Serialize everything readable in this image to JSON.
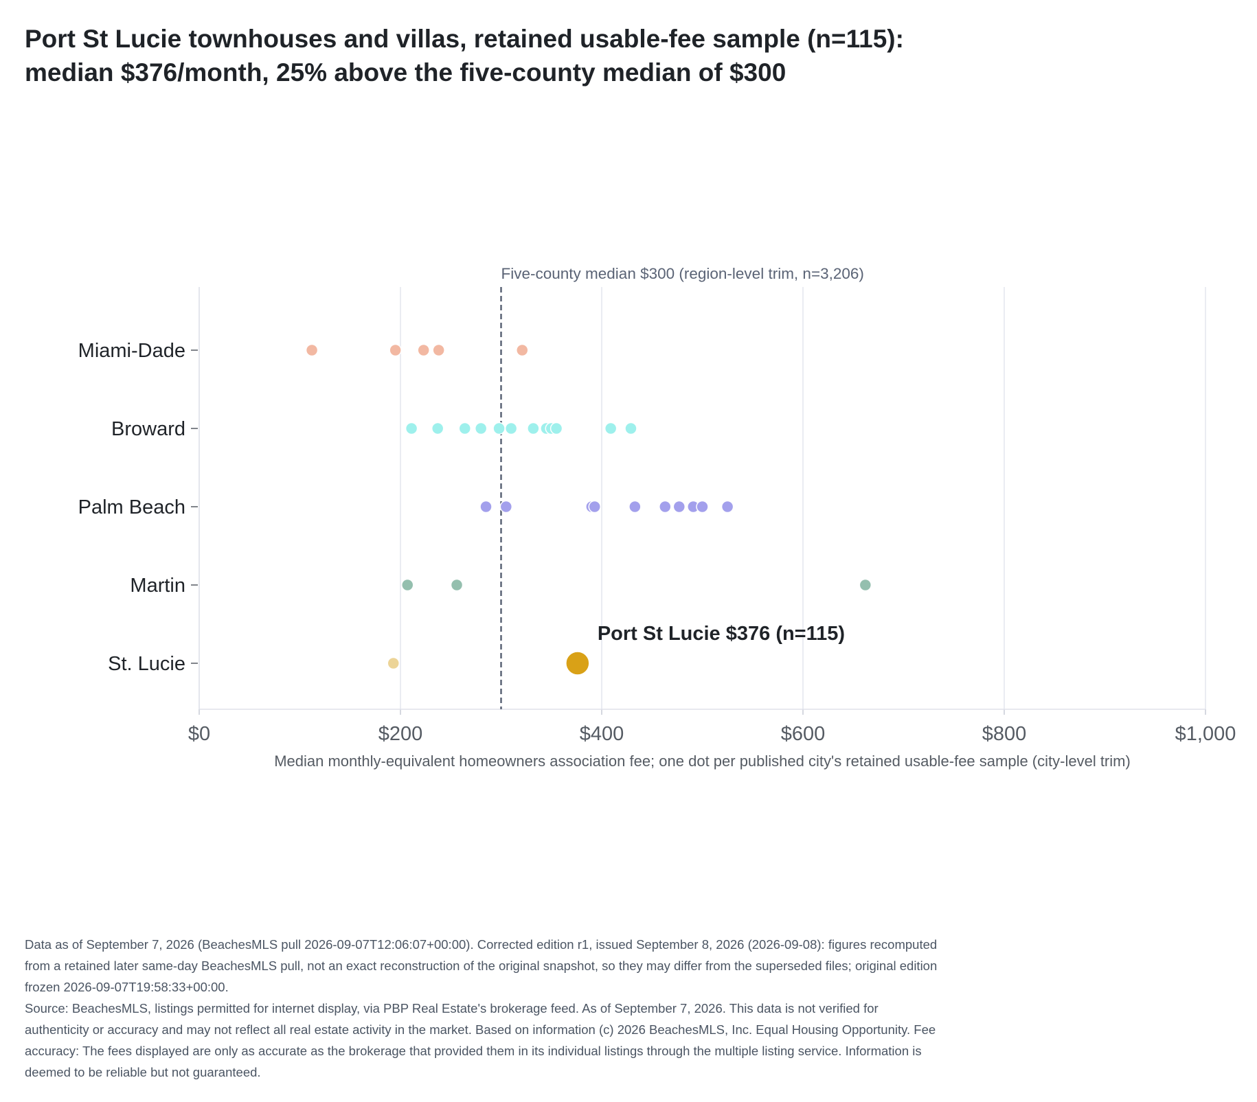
{
  "title": "Port St Lucie townhouses and villas, retained usable-fee sample (n=115): median $376/month, 25% above the five-county median of $300",
  "chart_data": {
    "type": "scatter",
    "xlabel": "Median monthly-equivalent homeowners association fee; one dot per published city's retained usable-fee sample (city-level trim)",
    "xlim": [
      0,
      1000
    ],
    "x_ticks": [
      0,
      200,
      400,
      600,
      800,
      1000
    ],
    "x_tick_labels": [
      "$0",
      "$200",
      "$400",
      "$600",
      "$800",
      "$1,000"
    ],
    "grid": "vertical",
    "categories": [
      "Miami-Dade",
      "Broward",
      "Palm Beach",
      "Martin",
      "St. Lucie"
    ],
    "series": [
      {
        "category": "Miami-Dade",
        "color": "#f2b8a2",
        "values": [
          112,
          195,
          223,
          238,
          321
        ]
      },
      {
        "category": "Broward",
        "color": "#9ef0ec",
        "values": [
          211,
          237,
          264,
          280,
          298,
          310,
          332,
          345,
          350,
          355,
          409,
          429
        ]
      },
      {
        "category": "Palm Beach",
        "color": "#a3a0ec",
        "values": [
          285,
          305,
          390,
          393,
          433,
          463,
          477,
          491,
          500,
          525
        ]
      },
      {
        "category": "Martin",
        "color": "#94bfae",
        "values": [
          207,
          256,
          662
        ]
      },
      {
        "category": "St. Lucie",
        "color": "#ecd497",
        "values": [
          193
        ]
      }
    ],
    "highlight": {
      "category": "St. Lucie",
      "value": 376,
      "color": "#d9a117",
      "label": "Port St Lucie $376 (n=115)"
    },
    "reference_line": {
      "value": 300,
      "label": "Five-county median $300 (region-level trim, n=3,206)",
      "color": "#5a6375"
    }
  },
  "footer": {
    "edition_note": "Data as of September 7, 2026 (BeachesMLS pull 2026-09-07T12:06:07+00:00). Corrected edition r1, issued September 8, 2026 (2026-09-08): figures recomputed from a retained later same-day BeachesMLS pull, not an exact reconstruction of the original snapshot, so they may differ from the superseded files; original edition frozen 2026-09-07T19:58:33+00:00.",
    "source_note": "Source: BeachesMLS, listings permitted for internet display, via PBP Real Estate's brokerage feed. As of September 7, 2026. This data is not verified for authenticity or accuracy and may not reflect all real estate activity in the market. Based on information (c) 2026 BeachesMLS, Inc. Equal Housing Opportunity. Fee accuracy: The fees displayed are only as accurate as the brokerage that provided them in its individual listings through the multiple listing service. Information is deemed to be reliable but not guaranteed."
  }
}
